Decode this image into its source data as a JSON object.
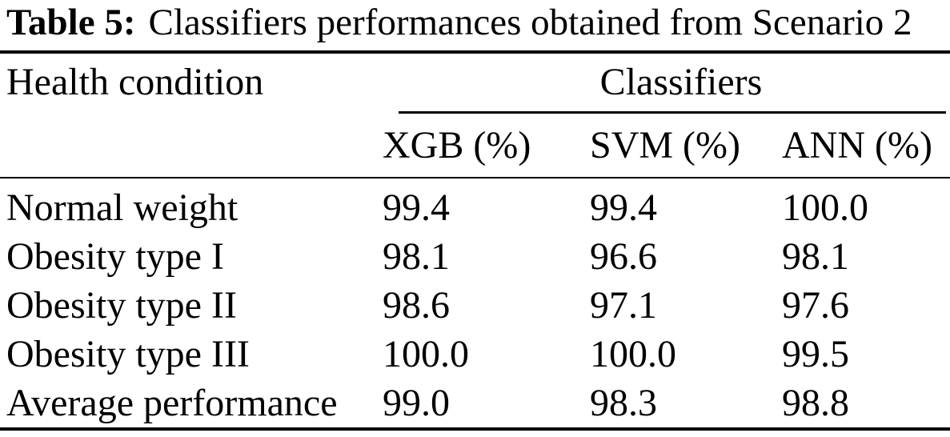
{
  "table": {
    "caption": {
      "label": "Table 5:",
      "text": "Classifiers performances obtained from Scenario 2"
    },
    "header": {
      "stub_label": "Health condition",
      "group_label": "Classifiers",
      "columns": [
        "XGB (%)",
        "SVM (%)",
        "ANN (%)"
      ]
    },
    "rows": [
      {
        "label": "Normal weight",
        "values": [
          "99.4",
          "99.4",
          "100.0"
        ]
      },
      {
        "label": "Obesity type I",
        "values": [
          "98.1",
          "96.6",
          "98.1"
        ]
      },
      {
        "label": "Obesity type II",
        "values": [
          "98.6",
          "97.1",
          "97.6"
        ]
      },
      {
        "label": "Obesity type III",
        "values": [
          "100.0",
          "100.0",
          "99.5"
        ]
      },
      {
        "label": "Average performance",
        "values": [
          "99.0",
          "98.3",
          "98.8"
        ]
      }
    ],
    "colors": {
      "text": "#000000",
      "background": "#ffffff",
      "rule": "#000000"
    }
  },
  "chart_data": {
    "type": "table",
    "title": "Table 5: Classifiers performances obtained from Scenario 2",
    "row_header": "Health condition",
    "column_group": "Classifiers",
    "categories": [
      "Normal weight",
      "Obesity type I",
      "Obesity type II",
      "Obesity type III",
      "Average performance"
    ],
    "series": [
      {
        "name": "XGB (%)",
        "values": [
          99.4,
          98.1,
          98.6,
          100.0,
          99.0
        ]
      },
      {
        "name": "SVM (%)",
        "values": [
          99.4,
          96.6,
          97.1,
          100.0,
          98.3
        ]
      },
      {
        "name": "ANN (%)",
        "values": [
          100.0,
          98.1,
          97.6,
          99.5,
          98.8
        ]
      }
    ]
  }
}
